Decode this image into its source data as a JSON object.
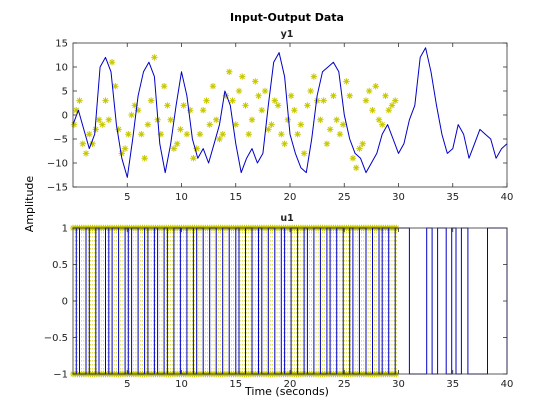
{
  "chart_data": {
    "type": "line",
    "title": "Input-Output Data",
    "xlabel": "Time (seconds)",
    "ylabel": "Amplitude",
    "xlim": [
      0,
      40
    ],
    "x_ticks": [
      5,
      10,
      15,
      20,
      25,
      30,
      35,
      40
    ],
    "colors": {
      "line": "#0000c8",
      "marker": "#c8c800",
      "axes": "#333333"
    },
    "subplots": [
      {
        "title": "y1",
        "ylim": [
          -15,
          15
        ],
        "y_ticks": [
          15,
          10,
          5,
          0,
          -5,
          -10,
          -15
        ],
        "line_series": {
          "x": [
            0,
            0.5,
            1,
            1.5,
            2,
            2.5,
            3,
            3.5,
            4,
            4.5,
            5,
            5.5,
            6,
            6.5,
            7,
            7.5,
            8,
            8.5,
            9,
            9.5,
            10,
            10.5,
            11,
            11.5,
            12,
            12.5,
            13,
            13.5,
            14,
            14.5,
            15,
            15.5,
            16,
            16.5,
            17,
            17.5,
            18,
            18.5,
            19,
            19.5,
            20,
            20.5,
            21,
            21.5,
            22,
            22.5,
            23,
            23.5,
            24,
            24.5,
            25,
            25.5,
            26,
            26.5,
            27,
            27.5,
            28,
            28.5,
            29,
            29.5,
            30,
            30.5,
            31,
            31.5,
            32,
            32.5,
            33,
            33.5,
            34,
            34.5,
            35,
            35.5,
            36,
            36.5,
            37,
            37.5,
            38,
            38.5,
            39,
            39.5,
            40
          ],
          "y": [
            -2,
            1,
            -3,
            -7,
            -4,
            10,
            12,
            9,
            -2,
            -9,
            -13,
            -5,
            4,
            9,
            11,
            8,
            -6,
            -12,
            -6,
            2,
            9,
            4,
            -5,
            -9,
            -7,
            -10,
            -6,
            -2,
            5,
            2,
            -6,
            -12,
            -9,
            -7,
            -10,
            -8,
            2,
            11,
            13,
            8,
            -4,
            -8,
            -11,
            -12,
            -5,
            4,
            9,
            10,
            11,
            9,
            0,
            -5,
            -8,
            -9,
            -12,
            -10,
            -8,
            -4,
            -2,
            -5,
            -8,
            -6,
            -1,
            2,
            12,
            14,
            9,
            2,
            -4,
            -8,
            -7,
            -2,
            -4,
            -9,
            -6,
            -3,
            -4,
            -5,
            -9,
            -7,
            -6
          ],
          "style": "solid"
        },
        "marker_series": {
          "x": [
            0.1,
            0.3,
            0.6,
            0.9,
            1.2,
            1.5,
            1.8,
            2.1,
            2.4,
            2.7,
            3.0,
            3.3,
            3.6,
            3.9,
            4.2,
            4.5,
            4.8,
            5.1,
            5.4,
            5.7,
            6.0,
            6.3,
            6.6,
            6.9,
            7.2,
            7.5,
            7.8,
            8.1,
            8.4,
            8.7,
            9.0,
            9.3,
            9.6,
            9.9,
            10.2,
            10.5,
            10.8,
            11.1,
            11.4,
            11.7,
            12.0,
            12.3,
            12.6,
            12.9,
            13.2,
            13.5,
            13.8,
            14.1,
            14.4,
            14.7,
            15.0,
            15.3,
            15.6,
            15.9,
            16.2,
            16.5,
            16.8,
            17.1,
            17.4,
            17.7,
            18.0,
            18.3,
            18.6,
            18.9,
            19.2,
            19.5,
            19.8,
            20.1,
            20.4,
            20.7,
            21.0,
            21.3,
            21.6,
            21.9,
            22.2,
            22.5,
            22.8,
            23.1,
            23.4,
            23.7,
            24.0,
            24.3,
            24.6,
            24.9,
            25.2,
            25.5,
            25.8,
            26.1,
            26.4,
            26.7,
            27.0,
            27.3,
            27.6,
            27.9,
            28.2,
            28.5,
            28.8,
            29.1,
            29.4,
            29.7
          ],
          "y": [
            -2,
            1,
            3,
            -6,
            -8,
            -4,
            -6,
            -3,
            -1,
            -2,
            3,
            -1,
            11,
            6,
            -3,
            -8,
            -7,
            -4,
            0,
            2,
            1,
            -4,
            -9,
            -2,
            3,
            12,
            -1,
            -4,
            6,
            2,
            -1,
            -7,
            -6,
            -3,
            2,
            -4,
            1,
            -9,
            -7,
            -4,
            1,
            3,
            -2,
            6,
            -1,
            -5,
            -4,
            4,
            9,
            3,
            -2,
            5,
            8,
            2,
            -4,
            -1,
            7,
            4,
            1,
            5,
            -3,
            -2,
            3,
            2,
            -4,
            -6,
            -1,
            4,
            1,
            -4,
            -2,
            -8,
            2,
            5,
            8,
            3,
            -1,
            3,
            -6,
            -3,
            4,
            -1,
            -4,
            -2,
            7,
            4,
            -9,
            -11,
            -7,
            -6,
            3,
            5,
            1,
            6,
            -1,
            -2,
            4,
            1,
            2,
            3
          ],
          "style": "asterisk"
        }
      },
      {
        "title": "u1",
        "ylim": [
          -1,
          1
        ],
        "y_ticks": [
          1,
          0.5,
          0,
          -0.5,
          -1
        ],
        "line_series": {
          "switch_times": [
            0.3,
            0.6,
            1.2,
            1.5,
            2.1,
            2.4,
            3.0,
            3.3,
            3.6,
            4.2,
            4.8,
            5.1,
            5.4,
            6.0,
            6.6,
            6.9,
            7.5,
            7.8,
            8.4,
            8.7,
            9.3,
            9.9,
            10.5,
            11.1,
            11.4,
            12.0,
            12.6,
            13.2,
            13.8,
            14.4,
            15.0,
            15.3,
            15.9,
            16.5,
            17.1,
            17.4,
            18.0,
            18.6,
            19.2,
            19.5,
            20.1,
            20.7,
            21.3,
            21.6,
            22.2,
            22.8,
            23.4,
            23.7,
            24.3,
            24.9,
            25.5,
            25.8,
            26.4,
            27.0,
            27.6,
            28.2,
            28.5,
            29.1,
            29.7,
            31.0,
            32.6,
            33.1,
            33.6,
            34.4,
            34.9,
            35.3,
            35.8,
            36.4,
            38.2,
            40.0
          ],
          "start_level": -1,
          "style": "step"
        },
        "marker_series": {
          "x_start": 0,
          "x_end": 29.8,
          "step": 0.2,
          "levels": [
            -1,
            1
          ],
          "style": "asterisk"
        }
      }
    ]
  }
}
